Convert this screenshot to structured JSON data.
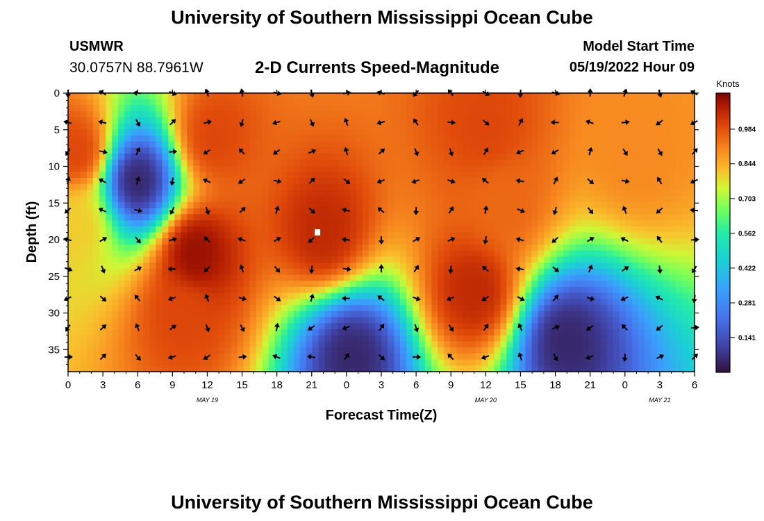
{
  "header": {
    "title": "University of Southern Mississippi Ocean Cube",
    "station_name": "USMWR",
    "station_coords": "30.0757N  88.7961W",
    "subtitle": "2-D Currents Speed-Magnitude",
    "model_label": "Model Start Time",
    "model_value": "05/19/2022 Hour 09"
  },
  "footer": {
    "title": "University of Southern Mississippi Ocean Cube"
  },
  "chart_data": {
    "type": "heatmap",
    "title": "2-D Currents Speed-Magnitude",
    "xlabel": "Forecast Time(Z)",
    "ylabel": "Depth (ft)",
    "x_range_hours": [
      0,
      54
    ],
    "y_range_ft": [
      0,
      38
    ],
    "x_tick_labels": [
      "0",
      "3",
      "6",
      "9",
      "12",
      "15",
      "18",
      "21",
      "0",
      "3",
      "6",
      "9",
      "12",
      "15",
      "18",
      "21",
      "0",
      "3",
      "6"
    ],
    "y_tick_labels": [
      "0",
      "5",
      "10",
      "15",
      "20",
      "25",
      "30",
      "35"
    ],
    "date_labels": [
      {
        "label": "MAY 19",
        "hour": 12
      },
      {
        "label": "MAY 20",
        "hour": 36
      },
      {
        "label": "MAY 21",
        "hour": 51
      }
    ],
    "colorbar": {
      "unit": "Knots",
      "tick_labels": [
        "0.984",
        "0.844",
        "0.703",
        "0.562",
        "0.422",
        "0.281",
        "0.141"
      ],
      "tick_values": [
        0.984,
        0.844,
        0.703,
        0.562,
        0.422,
        0.281,
        0.141
      ],
      "range": [
        0.0,
        1.13
      ]
    },
    "speed_features": [
      {
        "hour": 0.8,
        "depth": 8,
        "speed": 1.0
      },
      {
        "hour": 0.8,
        "depth": 18,
        "speed": 0.8
      },
      {
        "hour": 6.0,
        "depth": 12,
        "speed": 0.05
      },
      {
        "hour": 11.0,
        "depth": 22,
        "speed": 1.1
      },
      {
        "hour": 12.5,
        "depth": 6,
        "speed": 1.0
      },
      {
        "hour": 10.0,
        "depth": 30,
        "speed": 1.0
      },
      {
        "hour": 22.0,
        "depth": 19,
        "speed": 1.05
      },
      {
        "hour": 24.5,
        "depth": 36,
        "speed": 0.05
      },
      {
        "hour": 36.0,
        "depth": 5,
        "speed": 1.0
      },
      {
        "hour": 35.0,
        "depth": 27,
        "speed": 1.05
      },
      {
        "hour": 37.5,
        "depth": 15,
        "speed": 0.95
      },
      {
        "hour": 43.0,
        "depth": 34,
        "speed": 0.05
      },
      {
        "hour": 49.0,
        "depth": 8,
        "speed": 0.9
      }
    ],
    "marker": {
      "hour": 21.5,
      "depth": 19
    }
  }
}
